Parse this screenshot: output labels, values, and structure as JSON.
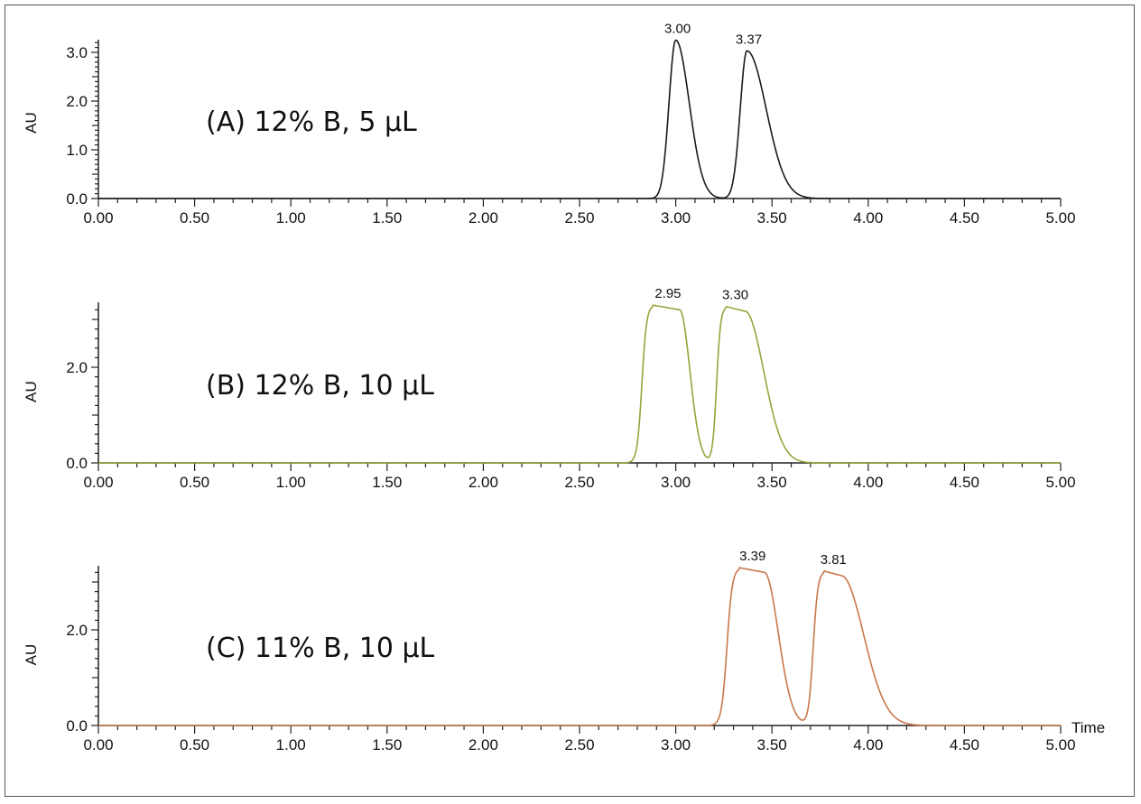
{
  "chart_data": [
    {
      "type": "line",
      "panel": "A",
      "title": "(A) 12% B, 5 µL",
      "xlabel": "",
      "ylabel": "AU",
      "xlim": [
        0,
        5
      ],
      "ylim": [
        0,
        3.25
      ],
      "x_ticks": [
        "0.00",
        "0.50",
        "1.00",
        "1.50",
        "2.00",
        "2.50",
        "3.00",
        "3.50",
        "4.00",
        "4.50",
        "5.00"
      ],
      "y_ticks": [
        "0.0",
        "1.0",
        "2.0",
        "3.0"
      ],
      "color": "#1a1a1a",
      "peaks": [
        {
          "label": "3.00",
          "rt": 3.0,
          "height": 3.25,
          "start": 2.87,
          "end": 3.22,
          "sigma_l": 0.035,
          "sigma_r": 0.07
        },
        {
          "label": "3.37",
          "rt": 3.37,
          "height": 3.03,
          "start": 3.25,
          "end": 3.7,
          "sigma_l": 0.035,
          "sigma_r": 0.1
        }
      ],
      "shape": "gaussian"
    },
    {
      "type": "line",
      "panel": "B",
      "title": "(B) 12% B, 10 µL",
      "xlabel": "",
      "ylabel": "AU",
      "xlim": [
        0,
        5
      ],
      "ylim": [
        0,
        3.3
      ],
      "x_ticks": [
        "0.00",
        "0.50",
        "1.00",
        "1.50",
        "2.00",
        "2.50",
        "3.00",
        "3.50",
        "4.00",
        "4.50",
        "5.00"
      ],
      "y_ticks": [
        "0.0",
        "2.0"
      ],
      "color": "#9aa23a",
      "peaks": [
        {
          "label": "2.95",
          "rt": 2.95,
          "height": 3.3,
          "start": 2.82,
          "end": 3.18,
          "rise": 0.035,
          "fall": 0.055,
          "top_l": 2.88,
          "top_r": 3.02
        },
        {
          "label": "3.30",
          "rt": 3.3,
          "height": 3.27,
          "start": 3.2,
          "end": 3.7,
          "rise": 0.03,
          "fall": 0.1,
          "top_l": 3.26,
          "top_r": 3.36
        }
      ],
      "shape": "flat-top (overloaded)"
    },
    {
      "type": "line",
      "panel": "C",
      "title": "(C) 11% B, 10 µL",
      "xlabel": "Time",
      "ylabel": "AU",
      "xlim": [
        0,
        5
      ],
      "ylim": [
        0,
        3.3
      ],
      "x_ticks": [
        "0.00",
        "0.50",
        "1.00",
        "1.50",
        "2.00",
        "2.50",
        "3.00",
        "3.50",
        "4.00",
        "4.50",
        "5.00"
      ],
      "y_ticks": [
        "0.0",
        "2.0"
      ],
      "color": "#c8784a",
      "peaks": [
        {
          "label": "3.39",
          "rt": 3.39,
          "height": 3.3,
          "start": 3.25,
          "end": 3.68,
          "rise": 0.04,
          "fall": 0.075,
          "top_l": 3.33,
          "top_r": 3.46
        },
        {
          "label": "3.81",
          "rt": 3.81,
          "height": 3.23,
          "start": 3.7,
          "end": 4.25,
          "rise": 0.035,
          "fall": 0.12,
          "top_l": 3.77,
          "top_r": 3.86
        }
      ],
      "shape": "flat-top (overloaded)"
    }
  ],
  "panels": [
    {
      "title": "(A) 12% B, 5 µL",
      "ylabel": "AU",
      "peak_labels": [
        "3.00",
        "3.37"
      ]
    },
    {
      "title": "(B) 12% B, 10 µL",
      "ylabel": "AU",
      "peak_labels": [
        "2.95",
        "3.30"
      ]
    },
    {
      "title": "(C) 11% B, 10 µL",
      "ylabel": "AU",
      "peak_labels": [
        "3.39",
        "3.81"
      ],
      "xlabel": "Time"
    }
  ],
  "colors": {
    "A": "#1a1a1a",
    "B": "#9aa23a",
    "C": "#c8784a",
    "axis": "#222222"
  }
}
